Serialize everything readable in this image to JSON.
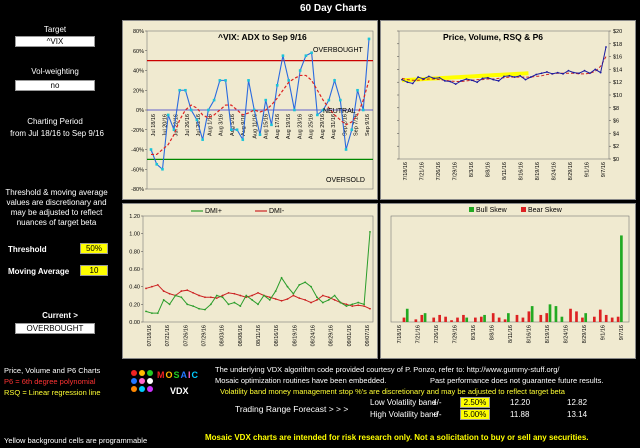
{
  "title": "60 Day Charts",
  "sidebar": {
    "target_label": "Target",
    "target_value": "^VIX",
    "volweight_label": "Vol-weighting",
    "volweight_value": "no",
    "period_label": "Charting Period",
    "period_value": "from Jul 18/16 to Sep 9/16",
    "note": "Threshold & moving average values are discretionary and may be adjusted to reflect nuances of target beta",
    "threshold_label": "Threshold",
    "threshold_value": "50%",
    "ma_label": "Moving Average",
    "ma_value": "10",
    "current_label": "Current >",
    "current_value": "OVERBOUGHT"
  },
  "legend_notes": {
    "pv_title": "Price, Volume and P6 Charts",
    "p6": "P6 = 6th degree polynomial",
    "rsq": "RSQ = Linear regression line",
    "yellow_note": "Yellow background cells are programmable"
  },
  "branding": {
    "mosaic": "MOSAIC",
    "vdx": "VDX"
  },
  "footer": {
    "line1": "The underlying VDX algorithm code provided courtesy of P. Ponzo, refer to:  http://www.gummy-stuff.org/",
    "line2": "Mosaic optimization routines have been embedded.",
    "line2b": "Past performance does not guarantee future results.",
    "line3": "Volatility band money management stop %'s are discretionary and may be adjusted to reflect target beta",
    "trading_range": "Trading Range Forecast > > >",
    "low_band": "Low Volatility band",
    "high_band": "High Volatility band",
    "plusminus": "+/-",
    "low_pct": "2.50%",
    "high_pct": "5.00%",
    "low_lo": "12.20",
    "low_hi": "12.82",
    "high_lo": "11.88",
    "high_hi": "13.14",
    "disclaimer": "Mosaic VDX charts are intended for risk research only.  Not a solicitation to buy or sell any securities."
  },
  "colors": {
    "panel_bg": "#f0ead0",
    "dmi_plus": "#2a9d2a",
    "dmi_minus": "#cc2222",
    "price": "#1a1aa0",
    "p6": "#cc2222",
    "rsq": "#ffff00",
    "bull": "#22aa22",
    "bear": "#dd2222",
    "threshold_red": "#cc0000",
    "threshold_green": "#008800",
    "neutral_blue": "#3333cc",
    "adx_line": "#2a6adf"
  },
  "chart_data": [
    {
      "id": "adx",
      "type": "line",
      "title": "^VIX:  ADX to Sep 9/16",
      "ylim": [
        -80,
        80
      ],
      "yticks": [
        "80%",
        "60%",
        "40%",
        "20%",
        "0%",
        "-20%",
        "-40%",
        "-60%",
        "-80%"
      ],
      "xticks": [
        "Jul 18/16",
        "Jul 20/16",
        "Jul 22/16",
        "Jul 26/16",
        "Jul 28/16",
        "Aug 1/16",
        "Aug 3/16",
        "Aug 5/16",
        "Aug 9/16",
        "Aug 11/16",
        "Aug 15/16",
        "Aug 17/16",
        "Aug 19/16",
        "Aug 23/16",
        "Aug 25/16",
        "Aug 29/16",
        "Aug 31/16",
        "Sep 2/16",
        "Sep 7/16",
        "Sep 9/16"
      ],
      "annotations": {
        "overbought": "OVERBOUGHT",
        "neutral": "NEUTRAL",
        "oversold": "OVERSOLD"
      },
      "thresholds": {
        "overbought": 50,
        "neutral": 0,
        "oversold": -50
      },
      "series": [
        {
          "name": "ADX",
          "values": [
            -40,
            -55,
            -60,
            -5,
            -20,
            20,
            20,
            0,
            -10,
            -30,
            0,
            10,
            30,
            30,
            -20,
            -20,
            -30,
            30,
            0,
            -25,
            10,
            -15,
            25,
            55,
            30,
            0,
            40,
            55,
            58,
            -5,
            0,
            10,
            30,
            10,
            -40,
            -20,
            20,
            0,
            72
          ]
        },
        {
          "name": "MA",
          "values": [
            -45,
            -45,
            -40,
            -35,
            -25,
            -10,
            0,
            5,
            2,
            -5,
            -8,
            -5,
            0,
            5,
            5,
            0,
            -5,
            -3,
            0,
            -2,
            0,
            5,
            12,
            20,
            28,
            32,
            35,
            35,
            30,
            20,
            10,
            2,
            -5,
            -10,
            -15,
            -12,
            -5,
            10,
            30
          ]
        }
      ]
    },
    {
      "id": "price",
      "type": "line",
      "title": "Price,  Volume, RSQ & P6",
      "ylim": [
        0,
        20
      ],
      "yticks": [
        "$20",
        "$18",
        "$16",
        "$14",
        "$12",
        "$10",
        "$8",
        "$6",
        "$4",
        "$2",
        "$0"
      ],
      "xticks": [
        "7/18/16",
        "7/21/16",
        "7/26/16",
        "7/29/16",
        "8/3/16",
        "8/8/16",
        "8/11/16",
        "8/16/16",
        "8/19/16",
        "8/24/16",
        "8/29/16",
        "9/1/16",
        "9/7/16"
      ],
      "series": [
        {
          "name": "Price",
          "values": [
            12.4,
            12.0,
            11.8,
            12.8,
            12.5,
            12.9,
            12.6,
            12.7,
            12.2,
            12.1,
            11.7,
            12.2,
            12.5,
            12.3,
            12.0,
            12.6,
            12.7,
            12.4,
            12.2,
            12.9,
            13.0,
            12.8,
            13.0,
            12.4,
            12.8,
            13.2,
            13.4,
            13.6,
            13.3,
            13.5,
            13.3,
            13.8,
            13.5,
            13.4,
            13.8,
            13.4,
            14.0,
            13.5,
            17.5
          ]
        },
        {
          "name": "P6",
          "values": [
            12.6,
            12.4,
            12.3,
            12.3,
            12.4,
            12.5,
            12.5,
            12.4,
            12.3,
            12.2,
            12.1,
            12.1,
            12.2,
            12.3,
            12.4,
            12.4,
            12.5,
            12.5,
            12.6,
            12.7,
            12.8,
            12.8,
            12.8,
            12.8,
            12.8,
            12.9,
            13.0,
            13.2,
            13.3,
            13.4,
            13.4,
            13.4,
            13.4,
            13.3,
            13.3,
            13.4,
            13.7,
            14.5,
            16.0
          ]
        },
        {
          "name": "RSQ",
          "values": [
            12.3,
            12.35,
            12.4,
            12.45,
            12.5,
            12.55,
            12.6,
            12.65,
            12.7,
            12.75,
            12.8,
            12.85,
            12.9,
            12.95,
            13.0,
            13.05,
            13.1,
            13.15,
            13.2,
            13.25,
            13.3,
            13.35,
            13.4
          ]
        }
      ]
    },
    {
      "id": "dmi",
      "type": "line",
      "ylim": [
        0,
        1.2
      ],
      "yticks": [
        "1.20",
        "1.00",
        "0.80",
        "0.60",
        "0.40",
        "0.20",
        "0.00"
      ],
      "xticks": [
        "07/18/16",
        "07/21/16",
        "07/26/16",
        "07/29/16",
        "08/03/16",
        "08/08/16",
        "08/11/16",
        "08/16/16",
        "08/19/16",
        "08/24/16",
        "08/29/16",
        "09/01/16",
        "09/07/16"
      ],
      "legend": [
        "DMI+",
        "DMI-"
      ],
      "series": [
        {
          "name": "DMI+",
          "values": [
            0.12,
            0.1,
            0.1,
            0.25,
            0.2,
            0.3,
            0.28,
            0.2,
            0.18,
            0.15,
            0.14,
            0.2,
            0.3,
            0.28,
            0.2,
            0.22,
            0.18,
            0.3,
            0.25,
            0.2,
            0.3,
            0.25,
            0.35,
            0.5,
            0.4,
            0.32,
            0.42,
            0.45,
            0.4,
            0.28,
            0.22,
            0.25,
            0.3,
            0.22,
            0.18,
            0.2,
            0.22,
            0.2,
            1.02
          ]
        },
        {
          "name": "DMI-",
          "values": [
            0.38,
            0.4,
            0.42,
            0.35,
            0.32,
            0.3,
            0.35,
            0.36,
            0.33,
            0.3,
            0.28,
            0.28,
            0.27,
            0.3,
            0.33,
            0.32,
            0.3,
            0.28,
            0.3,
            0.33,
            0.3,
            0.28,
            0.26,
            0.24,
            0.26,
            0.3,
            0.27,
            0.25,
            0.22,
            0.25,
            0.3,
            0.28,
            0.25,
            0.22,
            0.2,
            0.18,
            0.19,
            0.18,
            0.15
          ]
        }
      ]
    },
    {
      "id": "skew",
      "type": "bar",
      "ylim": [
        0,
        1.2
      ],
      "xticks": [
        "7/18/16",
        "7/21/16",
        "7/26/16",
        "7/29/16",
        "8/3/16",
        "8/8/16",
        "8/11/16",
        "8/16/16",
        "8/19/16",
        "8/24/16",
        "8/29/16",
        "9/1/16",
        "9/7/16"
      ],
      "legend": [
        "Bull Skew",
        "Bear Skew"
      ],
      "series": [
        {
          "name": "Bull Skew",
          "values": [
            0,
            0,
            0.15,
            0,
            0,
            0.1,
            0,
            0,
            0,
            0,
            0,
            0,
            0.05,
            0,
            0,
            0.08,
            0,
            0,
            0,
            0.1,
            0,
            0,
            0,
            0.18,
            0,
            0,
            0.2,
            0.18,
            0.06,
            0,
            0,
            0,
            0.1,
            0,
            0,
            0,
            0,
            0,
            0.98
          ]
        },
        {
          "name": "Bear Skew",
          "values": [
            0,
            0.05,
            0,
            0.03,
            0.08,
            0,
            0.05,
            0.08,
            0.06,
            0.02,
            0.05,
            0.08,
            0,
            0.05,
            0.06,
            0,
            0.1,
            0.05,
            0.03,
            0,
            0.08,
            0.05,
            0.12,
            0,
            0.08,
            0.1,
            0,
            0,
            0,
            0.15,
            0.12,
            0.05,
            0,
            0.06,
            0.14,
            0.08,
            0.05,
            0.06,
            0
          ]
        }
      ]
    }
  ]
}
